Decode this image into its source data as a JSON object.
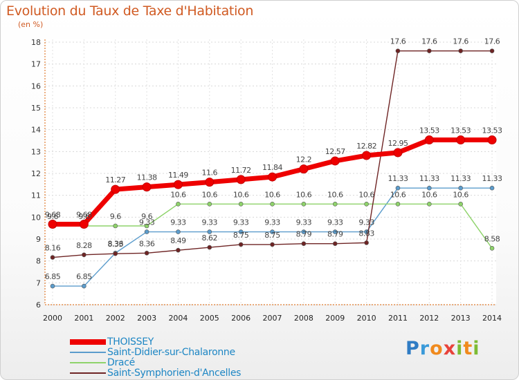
{
  "title": "Evolution du Taux de Taxe d'Habitation",
  "unit_label": "(en %)",
  "logo": {
    "text": "Proxiti",
    "letters": [
      "P",
      "r",
      "o",
      "x",
      "i",
      "t",
      "i"
    ],
    "colors": [
      "#2f7cc4",
      "#3a9ad9",
      "#f08a1d",
      "#e8423a",
      "#7cbb33",
      "#f08a1d",
      "#7cbb33"
    ]
  },
  "chart_data": {
    "type": "line",
    "x": [
      "2000",
      "2001",
      "2002",
      "2003",
      "2004",
      "2005",
      "2006",
      "2007",
      "2008",
      "2009",
      "2010",
      "2011",
      "2012",
      "2013",
      "2014"
    ],
    "ylim": [
      6,
      18
    ],
    "yticks": [
      "6",
      "7",
      "8",
      "9",
      "10",
      "11",
      "12",
      "13",
      "14",
      "15",
      "16",
      "17",
      "18"
    ],
    "grid": true,
    "legend_position": "bottom-left",
    "series": [
      {
        "name": "THOISSEY",
        "color": "#ee0000",
        "values": [
          9.68,
          9.68,
          11.27,
          11.38,
          11.49,
          11.6,
          11.72,
          11.84,
          12.2,
          12.57,
          12.82,
          12.95,
          13.53,
          13.53,
          13.53
        ],
        "labels": [
          "9.68",
          "9.68",
          "11.27",
          "11.38",
          "11.49",
          "11.6",
          "11.72",
          "11.84",
          "12.2",
          "12.57",
          "12.82",
          "12.95",
          "13.53",
          "13.53",
          "13.53"
        ]
      },
      {
        "name": "Saint-Didier-sur-Chalaronne",
        "color": "#5b9ccc",
        "values": [
          6.85,
          6.85,
          8.36,
          9.33,
          9.33,
          9.33,
          9.33,
          9.33,
          9.33,
          9.33,
          9.33,
          11.33,
          11.33,
          11.33,
          11.33
        ],
        "labels": [
          "6.85",
          "6.85",
          "8.36",
          "9.33",
          "9.33",
          "9.33",
          "9.33",
          "9.33",
          "9.33",
          "9.33",
          "9.33",
          "11.33",
          "11.33",
          "11.33",
          "11.33"
        ]
      },
      {
        "name": "Dracé",
        "color": "#8ed36a",
        "values": [
          9.6,
          9.6,
          9.6,
          9.6,
          10.6,
          10.6,
          10.6,
          10.6,
          10.6,
          10.6,
          10.6,
          10.6,
          10.6,
          10.6,
          8.58
        ],
        "labels": [
          "9.6",
          "9.6",
          "9.6",
          "9.6",
          "10.6",
          "10.6",
          "10.6",
          "10.6",
          "10.6",
          "10.6",
          "10.6",
          "10.6",
          "10.6",
          "10.6",
          "8.58"
        ]
      },
      {
        "name": "Saint-Symphorien-d'Ancelles",
        "color": "#6e2424",
        "values": [
          8.16,
          8.28,
          8.33,
          8.36,
          8.49,
          8.62,
          8.75,
          8.75,
          8.79,
          8.79,
          8.83,
          17.6,
          17.6,
          17.6,
          17.6
        ],
        "labels": [
          "8.16",
          "8.28",
          "8.33",
          "8.36",
          "8.49",
          "8.62",
          "8.75",
          "8.75",
          "8.79",
          "8.79",
          "8.83",
          "17.6",
          "17.6",
          "17.6",
          "17.6"
        ]
      }
    ]
  }
}
